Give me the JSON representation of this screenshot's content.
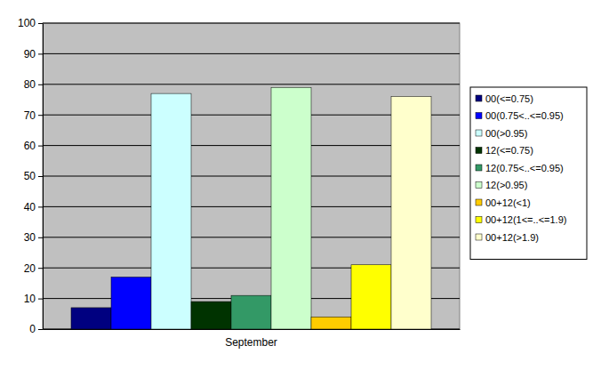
{
  "chart_data": {
    "type": "bar",
    "categories": [
      "September"
    ],
    "series": [
      {
        "name": "00(<=0.75)",
        "color": "#000080",
        "values": [
          7
        ]
      },
      {
        "name": "00(0.75<..<=0.95)",
        "color": "#0000ff",
        "values": [
          17
        ]
      },
      {
        "name": "00(>0.95)",
        "color": "#ccffff",
        "values": [
          77
        ]
      },
      {
        "name": "12(<=0.75)",
        "color": "#003300",
        "values": [
          9
        ]
      },
      {
        "name": "12(0.75<..<=0.95)",
        "color": "#339966",
        "values": [
          11
        ]
      },
      {
        "name": "12(>0.95)",
        "color": "#ccffcc",
        "values": [
          79
        ]
      },
      {
        "name": "00+12(<1)",
        "color": "#ffcc00",
        "values": [
          4
        ]
      },
      {
        "name": "00+12(1<=..<=1.9)",
        "color": "#ffff00",
        "values": [
          21
        ]
      },
      {
        "name": "00+12(>1.9)",
        "color": "#ffffcc",
        "values": [
          76
        ]
      }
    ],
    "ylim": [
      0,
      100
    ],
    "yticks": [
      0,
      10,
      20,
      30,
      40,
      50,
      60,
      70,
      80,
      90,
      100
    ],
    "grid": true,
    "legend": "right"
  }
}
